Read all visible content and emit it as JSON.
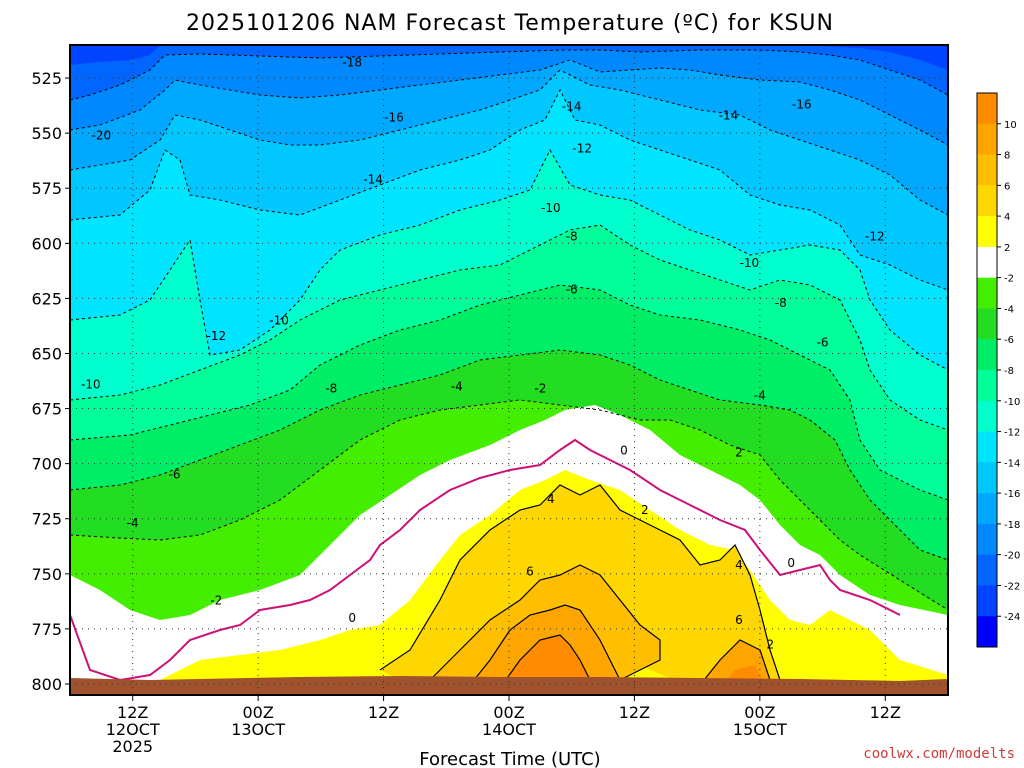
{
  "title": "2025101206 NAM Forecast Temperature (ºC) for KSUN",
  "xlabel": "Forecast Time (UTC)",
  "credit": "coolwx.com/modelts",
  "chart_data": {
    "type": "heatmap",
    "title": "2025101206 NAM Forecast Temperature (ºC) for KSUN",
    "xlabel": "Forecast Time (UTC)",
    "ylabel": "",
    "y_ticks": [
      "525",
      "550",
      "575",
      "600",
      "625",
      "650",
      "675",
      "700",
      "725",
      "750",
      "775",
      "800"
    ],
    "y_values": [
      525,
      550,
      575,
      600,
      625,
      650,
      675,
      700,
      725,
      750,
      775,
      800
    ],
    "ylim": [
      510,
      805
    ],
    "x_ticks": [
      {
        "hour": 6,
        "line1": "12Z",
        "line2": "12OCT",
        "line3": "2025"
      },
      {
        "hour": 18,
        "line1": "00Z",
        "line2": "13OCT",
        "line3": ""
      },
      {
        "hour": 30,
        "line1": "12Z",
        "line2": "",
        "line3": ""
      },
      {
        "hour": 42,
        "line1": "00Z",
        "line2": "14OCT",
        "line3": ""
      },
      {
        "hour": 54,
        "line1": "12Z",
        "line2": "",
        "line3": ""
      },
      {
        "hour": 66,
        "line1": "00Z",
        "line2": "15OCT",
        "line3": ""
      },
      {
        "hour": 78,
        "line1": "12Z",
        "line2": "",
        "line3": ""
      }
    ],
    "xlim": [
      0,
      84
    ],
    "grid": true,
    "colorbar_ticks": [
      "10",
      "8",
      "6",
      "4",
      "2",
      "-2",
      "-4",
      "-6",
      "-8",
      "-10",
      "-12",
      "-14",
      "-16",
      "-18",
      "-20",
      "-22",
      "-24"
    ],
    "colorbar_colors": [
      "#ff8c00",
      "#ffa500",
      "#ffbf00",
      "#ffd700",
      "#ffff00",
      "#ffffff",
      "#44ee00",
      "#22dd22",
      "#00ee66",
      "#00ff99",
      "#00ffcc",
      "#00e5ff",
      "#00c8ff",
      "#00a8ff",
      "#0088ff",
      "#0066ff",
      "#0044ff",
      "#0000ff"
    ],
    "contour_labels": [
      {
        "text": "-18",
        "hour": 27,
        "p": 518
      },
      {
        "text": "-16",
        "hour": 31,
        "p": 543
      },
      {
        "text": "-20",
        "hour": 3,
        "p": 551
      },
      {
        "text": "-14",
        "hour": 29,
        "p": 571
      },
      {
        "text": "-14",
        "hour": 48,
        "p": 538
      },
      {
        "text": "-14",
        "hour": 63,
        "p": 542
      },
      {
        "text": "-16",
        "hour": 70,
        "p": 537
      },
      {
        "text": "-12",
        "hour": 49,
        "p": 557
      },
      {
        "text": "-10",
        "hour": 46,
        "p": 584
      },
      {
        "text": "-8",
        "hour": 48,
        "p": 597
      },
      {
        "text": "-12",
        "hour": 77,
        "p": 597
      },
      {
        "text": "-10",
        "hour": 65,
        "p": 609
      },
      {
        "text": "-6",
        "hour": 48,
        "p": 621
      },
      {
        "text": "-8",
        "hour": 68,
        "p": 627
      },
      {
        "text": "-12",
        "hour": 14,
        "p": 642
      },
      {
        "text": "-10",
        "hour": 20,
        "p": 635
      },
      {
        "text": "-10",
        "hour": 2,
        "p": 664
      },
      {
        "text": "-8",
        "hour": 25,
        "p": 666
      },
      {
        "text": "-4",
        "hour": 37,
        "p": 665
      },
      {
        "text": "-2",
        "hour": 45,
        "p": 666
      },
      {
        "text": "-6",
        "hour": 72,
        "p": 645
      },
      {
        "text": "-4",
        "hour": 66,
        "p": 669
      },
      {
        "text": "0",
        "hour": 53,
        "p": 694
      },
      {
        "text": "2",
        "hour": 64,
        "p": 695
      },
      {
        "text": "-6",
        "hour": 10,
        "p": 705
      },
      {
        "text": "-4",
        "hour": 6,
        "p": 727
      },
      {
        "text": "4",
        "hour": 46,
        "p": 716
      },
      {
        "text": "2",
        "hour": 55,
        "p": 721
      },
      {
        "text": "-2",
        "hour": 14,
        "p": 762
      },
      {
        "text": "0",
        "hour": 27,
        "p": 770
      },
      {
        "text": "6",
        "hour": 44,
        "p": 749
      },
      {
        "text": "4",
        "hour": 64,
        "p": 746
      },
      {
        "text": "0",
        "hour": 69,
        "p": 745
      },
      {
        "text": "6",
        "hour": 64,
        "p": 771
      },
      {
        "text": "2",
        "hour": 67,
        "p": 782
      }
    ]
  }
}
